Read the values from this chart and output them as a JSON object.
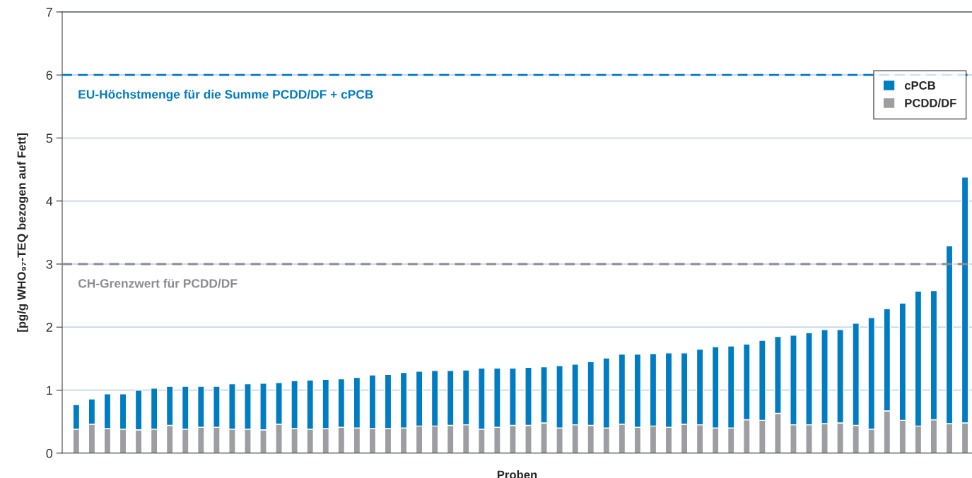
{
  "chart_data": {
    "type": "bar",
    "stacked": true,
    "xlabel": "Proben",
    "ylabel": "[pg/g WHO₉₇-TEQ bezogen auf Fett]",
    "categories": [
      null,
      null,
      null,
      null,
      null,
      null,
      null,
      null,
      null,
      null,
      null,
      null,
      null,
      null,
      null,
      null,
      null,
      null,
      null,
      null,
      null,
      null,
      null,
      null,
      null,
      null,
      null,
      null,
      null,
      null,
      null,
      null,
      null,
      null,
      null,
      null,
      null,
      null,
      null,
      null,
      null,
      null,
      null,
      null,
      null,
      null,
      null,
      null,
      null,
      null,
      null,
      null,
      null,
      null,
      null,
      null,
      null,
      null
    ],
    "series": [
      {
        "name": "PCDD/DF",
        "color": "#9d9ea2",
        "values": [
          0.38,
          0.46,
          0.39,
          0.38,
          0.37,
          0.38,
          0.44,
          0.38,
          0.41,
          0.41,
          0.38,
          0.38,
          0.37,
          0.46,
          0.39,
          0.38,
          0.39,
          0.41,
          0.4,
          0.39,
          0.39,
          0.4,
          0.43,
          0.43,
          0.44,
          0.45,
          0.38,
          0.41,
          0.44,
          0.44,
          0.48,
          0.4,
          0.45,
          0.44,
          0.4,
          0.46,
          0.41,
          0.43,
          0.41,
          0.46,
          0.45,
          0.4,
          0.4,
          0.53,
          0.52,
          0.63,
          0.45,
          0.45,
          0.47,
          0.48,
          0.44,
          0.38,
          0.67,
          0.52,
          0.43,
          0.53,
          0.47,
          0.48
        ]
      },
      {
        "name": "cPCB",
        "color": "#007cc3",
        "values": [
          0.39,
          0.4,
          0.55,
          0.56,
          0.63,
          0.65,
          0.62,
          0.68,
          0.65,
          0.65,
          0.72,
          0.72,
          0.74,
          0.66,
          0.76,
          0.78,
          0.78,
          0.77,
          0.8,
          0.85,
          0.86,
          0.88,
          0.87,
          0.88,
          0.87,
          0.87,
          0.97,
          0.94,
          0.91,
          0.92,
          0.89,
          0.99,
          0.96,
          1.01,
          1.11,
          1.11,
          1.16,
          1.15,
          1.18,
          1.13,
          1.2,
          1.29,
          1.3,
          1.2,
          1.27,
          1.22,
          1.42,
          1.46,
          1.49,
          1.48,
          1.62,
          1.77,
          1.62,
          1.86,
          2.14,
          2.05,
          2.82,
          3.9
        ]
      }
    ],
    "ylim": [
      0,
      7
    ],
    "yticks": [
      0,
      1,
      2,
      3,
      4,
      5,
      6,
      7
    ],
    "grid": "y",
    "legend": "top right",
    "ref_lines": [
      {
        "axis": "y",
        "value": 6,
        "label": "EU-Höchstmenge für die Summe PCDD/DF + cPCB",
        "color": "#007cc3",
        "line_style": "dashed"
      },
      {
        "axis": "y",
        "value": 3,
        "label": "CH-Grenzwert für PCDD/DF",
        "color": "#8c8c90",
        "line_style": "dashed"
      }
    ]
  }
}
